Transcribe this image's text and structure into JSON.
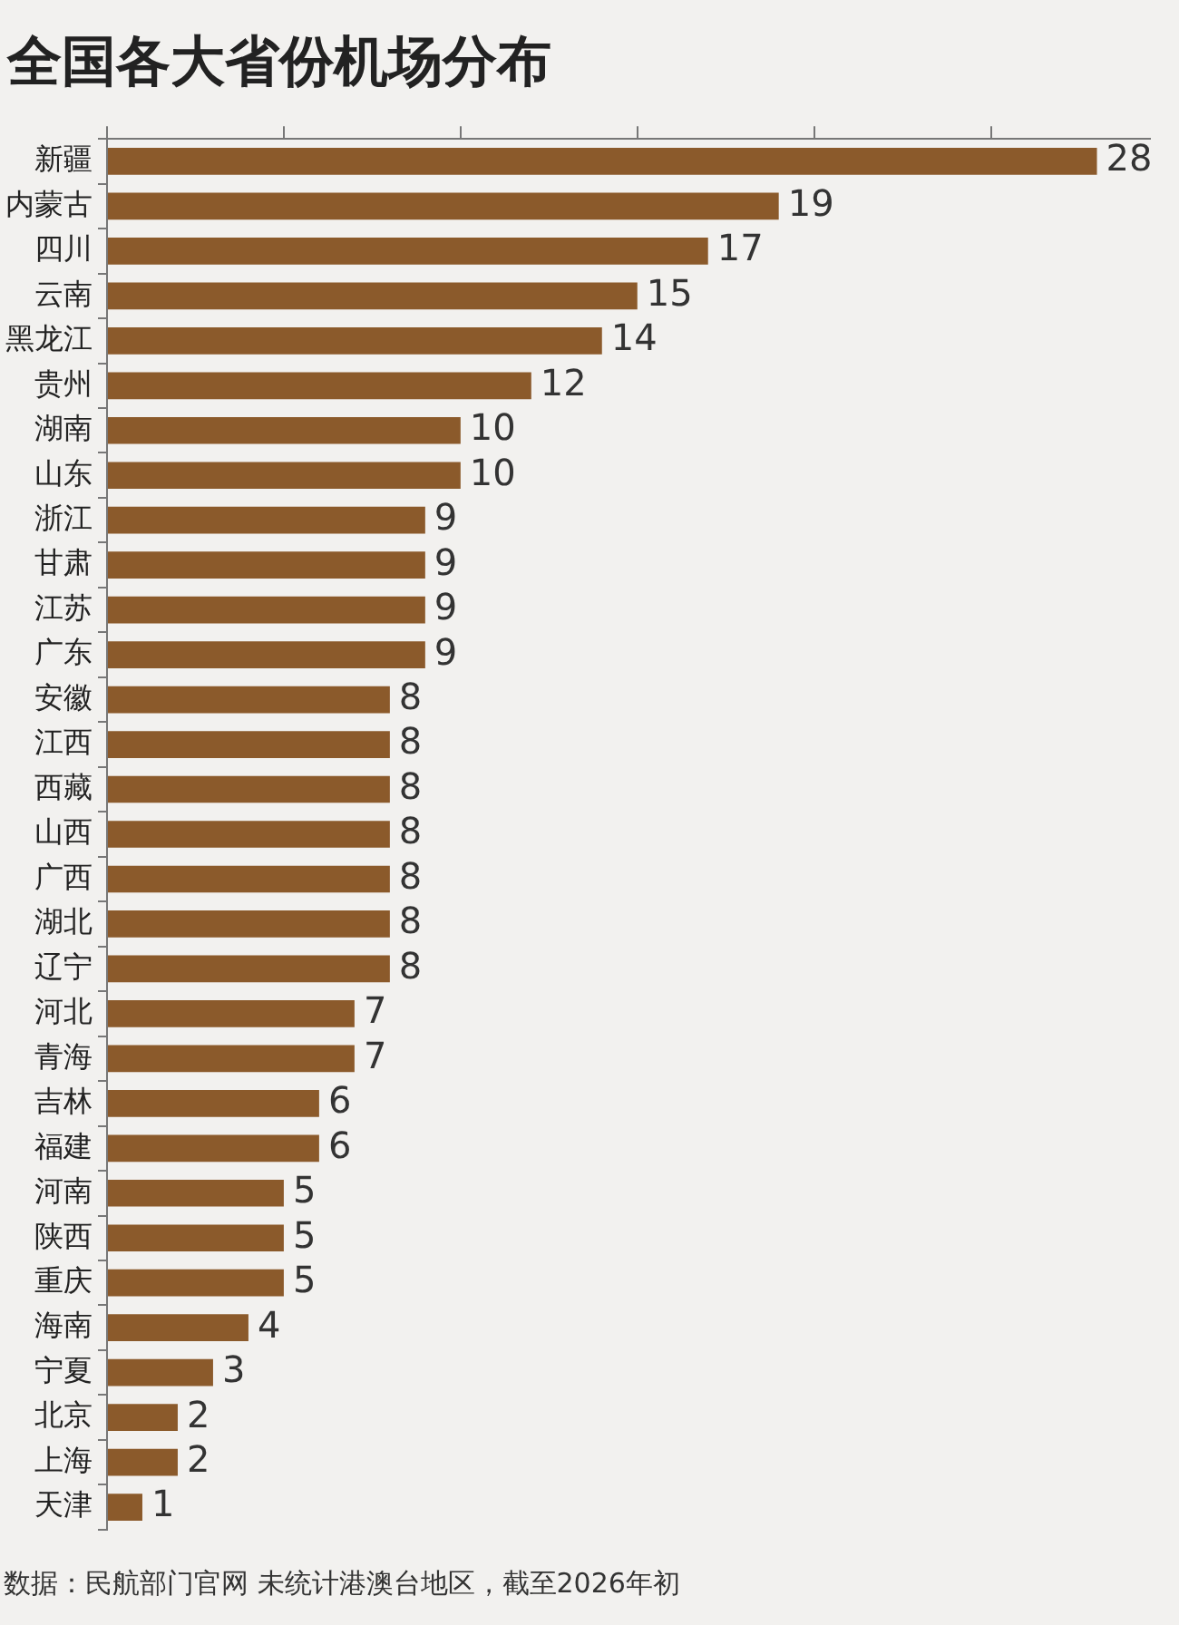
{
  "chart_data": {
    "type": "bar",
    "orientation": "horizontal",
    "title": "全国各大省份机场分布",
    "categories": [
      "新疆",
      "内蒙古",
      "四川",
      "云南",
      "黑龙江",
      "贵州",
      "湖南",
      "山东",
      "浙江",
      "甘肃",
      "江苏",
      "广东",
      "安徽",
      "江西",
      "西藏",
      "山西",
      "广西",
      "湖北",
      "辽宁",
      "河北",
      "青海",
      "吉林",
      "福建",
      "河南",
      "陕西",
      "重庆",
      "海南",
      "宁夏",
      "北京",
      "上海",
      "天津"
    ],
    "values": [
      28,
      19,
      17,
      15,
      14,
      12,
      10,
      10,
      9,
      9,
      9,
      9,
      8,
      8,
      8,
      8,
      8,
      8,
      8,
      7,
      7,
      6,
      6,
      5,
      5,
      5,
      4,
      3,
      2,
      2,
      1
    ],
    "color": "#8b5a2b",
    "xlim": [
      0,
      29.5
    ],
    "xticks": [
      {
        "value": 0,
        "label": null
      },
      {
        "value": 5,
        "label": null
      },
      {
        "value": 10,
        "label": null
      },
      {
        "value": 15,
        "label": null
      },
      {
        "value": 20,
        "label": null
      },
      {
        "value": 25,
        "label": null
      }
    ],
    "tick_labels": "y",
    "grid": false,
    "data_labels": true,
    "legend": false,
    "annotations": [
      "数据：民航部门官网 未统计港澳台地区，截至2026年初"
    ]
  }
}
